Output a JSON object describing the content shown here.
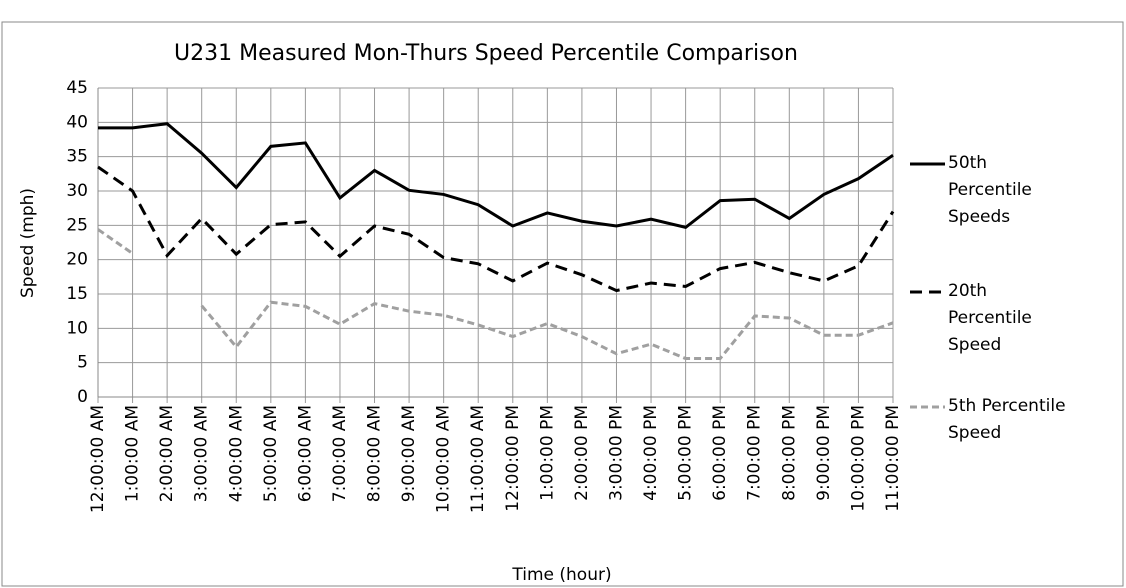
{
  "chart_data": {
    "type": "line",
    "title": "U231 Measured Mon-Thurs Speed Percentile Comparison",
    "x_label": "Time (hour)",
    "y_label": "Speed (mph)",
    "categories": [
      "12:00:00 AM",
      "1:00:00 AM",
      "2:00:00 AM",
      "3:00:00 AM",
      "4:00:00 AM",
      "5:00:00 AM",
      "6:00:00 AM",
      "7:00:00 AM",
      "8:00:00 AM",
      "9:00:00 AM",
      "10:00:00 AM",
      "11:00:00 AM",
      "12:00:00 PM",
      "1:00:00 PM",
      "2:00:00 PM",
      "3:00:00 PM",
      "4:00:00 PM",
      "5:00:00 PM",
      "6:00:00 PM",
      "7:00:00 PM",
      "8:00:00 PM",
      "9:00:00 PM",
      "10:00:00 PM",
      "11:00:00 PM"
    ],
    "series": [
      {
        "name": "50th Percentile Speeds",
        "color": "#000000",
        "dash": "solid",
        "values": [
          39.2,
          39.2,
          39.8,
          35.5,
          30.5,
          36.5,
          37,
          29,
          33,
          30.1,
          29.5,
          28,
          24.9,
          26.8,
          25.6,
          24.9,
          25.9,
          24.7,
          28.6,
          28.8,
          26,
          29.5,
          31.8,
          35.2
        ]
      },
      {
        "name": "20th Percentile Speed",
        "color": "#000000",
        "dash": "dashed",
        "values": [
          33.5,
          30,
          20.6,
          26,
          20.8,
          25.1,
          25.5,
          20.5,
          24.9,
          23.7,
          20.3,
          19.4,
          16.9,
          19.5,
          17.8,
          15.5,
          16.6,
          16.1,
          18.7,
          19.6,
          18.1,
          16.9,
          19.1,
          27
        ]
      },
      {
        "name": "5th Percentile Speed",
        "color": "#a0a0a0",
        "dash": "dotted",
        "values": [
          24.4,
          20.9,
          null,
          13.3,
          7.3,
          13.8,
          13.2,
          10.6,
          13.6,
          12.5,
          11.9,
          10.5,
          8.8,
          10.7,
          8.8,
          6.3,
          7.7,
          5.6,
          5.6,
          11.8,
          11.5,
          9,
          9,
          10.8
        ]
      }
    ],
    "ylim": [
      0,
      45
    ],
    "yticks": [
      0,
      5,
      10,
      15,
      20,
      25,
      30,
      35,
      40,
      45
    ],
    "grid": true,
    "legend": "right"
  }
}
